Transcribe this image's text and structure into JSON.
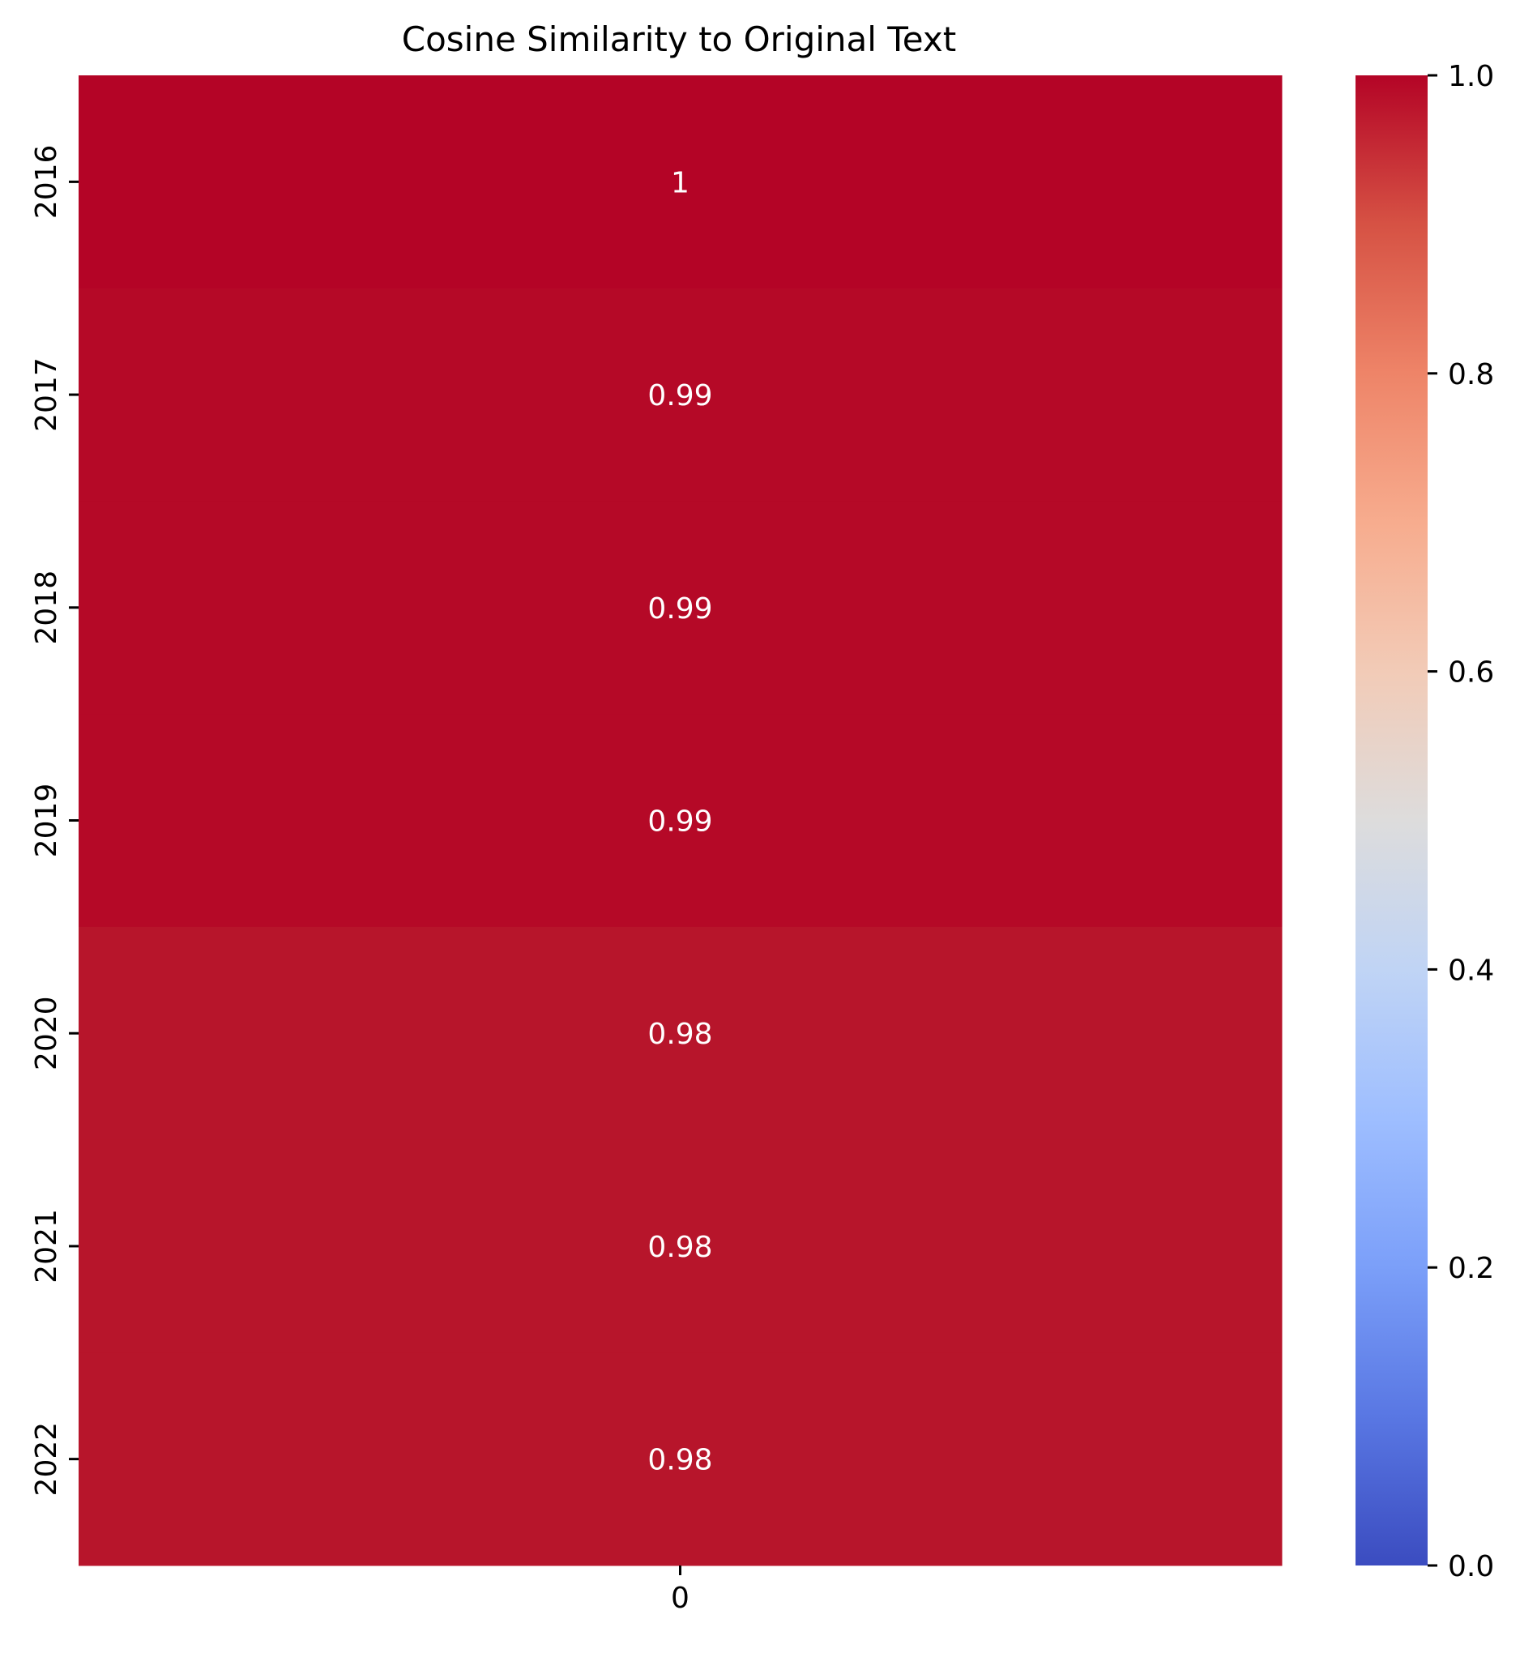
{
  "chart_data": {
    "type": "heatmap",
    "title": "Cosine Similarity to Original Text",
    "xlabel": "",
    "ylabel": "",
    "x_categories": [
      "0"
    ],
    "y_categories": [
      "2016",
      "2017",
      "2018",
      "2019",
      "2020",
      "2021",
      "2022"
    ],
    "values": [
      [
        1.0
      ],
      [
        0.99
      ],
      [
        0.99
      ],
      [
        0.99
      ],
      [
        0.98
      ],
      [
        0.98
      ],
      [
        0.98
      ]
    ],
    "cell_labels": [
      "1",
      "0.99",
      "0.99",
      "0.99",
      "0.98",
      "0.98",
      "0.98"
    ],
    "colormap": "coolwarm",
    "vmin": 0.0,
    "vmax": 1.0,
    "colorbar_ticks": [
      "0.0",
      "0.2",
      "0.4",
      "0.6",
      "0.8",
      "1.0"
    ],
    "colorbar_tick_values": [
      0.0,
      0.2,
      0.4,
      0.6,
      0.8,
      1.0
    ],
    "colors": {
      "cell_1.0": "#b40426",
      "cell_0.99": "#b50927",
      "cell_0.98": "#b7152b"
    }
  }
}
